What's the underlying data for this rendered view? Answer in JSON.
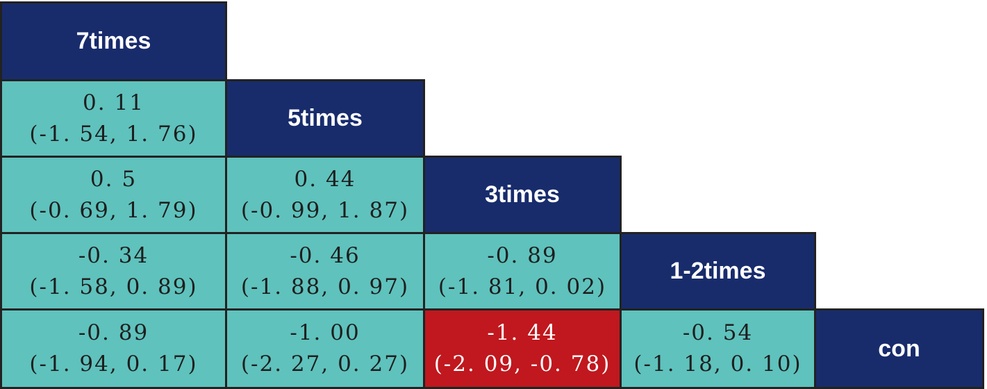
{
  "treatments": [
    "7times",
    "5times",
    "3times",
    "1-2times",
    "con"
  ],
  "comparisons": [
    {
      "row": 1,
      "col": 0,
      "estimate": "0. 11",
      "ci": "(-1. 54, 1. 76)",
      "significant": false
    },
    {
      "row": 2,
      "col": 0,
      "estimate": "0. 5",
      "ci": "(-0. 69, 1. 79)",
      "significant": false
    },
    {
      "row": 2,
      "col": 1,
      "estimate": "0. 44",
      "ci": "(-0. 99, 1. 87)",
      "significant": false
    },
    {
      "row": 3,
      "col": 0,
      "estimate": "-0. 34",
      "ci": "(-1. 58, 0. 89)",
      "significant": false
    },
    {
      "row": 3,
      "col": 1,
      "estimate": "-0. 46",
      "ci": "(-1. 88, 0. 97)",
      "significant": false
    },
    {
      "row": 3,
      "col": 2,
      "estimate": "-0. 89",
      "ci": "(-1. 81, 0. 02)",
      "significant": false
    },
    {
      "row": 4,
      "col": 0,
      "estimate": "-0. 89",
      "ci": "(-1. 94, 0. 17)",
      "significant": false
    },
    {
      "row": 4,
      "col": 1,
      "estimate": "-1. 00",
      "ci": "(-2. 27, 0. 27)",
      "significant": false
    },
    {
      "row": 4,
      "col": 2,
      "estimate": "-1. 44",
      "ci": "(-2. 09, -0. 78)",
      "significant": true
    },
    {
      "row": 4,
      "col": 3,
      "estimate": "-0. 54",
      "ci": "(-1. 18, 0. 10)",
      "significant": false
    }
  ],
  "colors": {
    "header": "#182c6c",
    "cell": "#5fc2bd",
    "significant": "#c0181e",
    "border": "#222222"
  }
}
